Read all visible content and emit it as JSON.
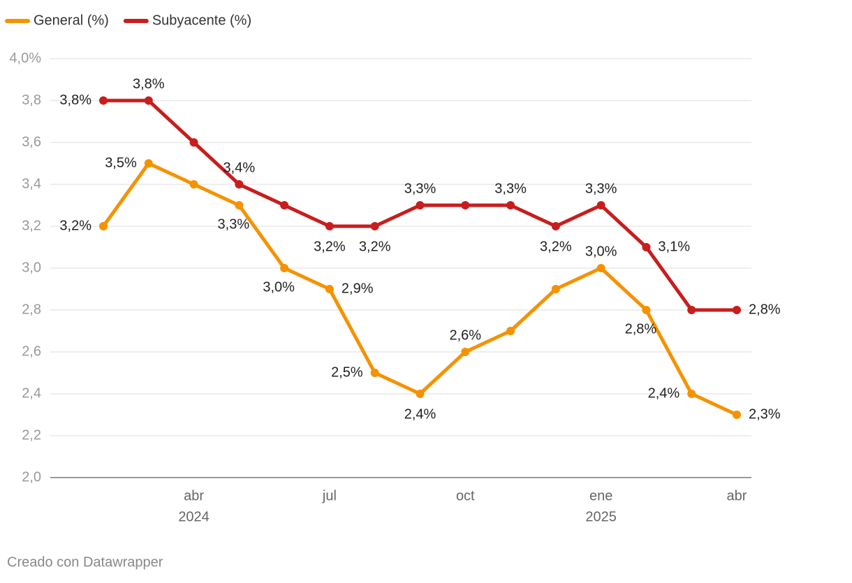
{
  "chart_data": {
    "type": "line",
    "categories": [
      null,
      null,
      "abr",
      null,
      null,
      "jul",
      null,
      null,
      "oct",
      null,
      null,
      "ene",
      null,
      null,
      "abr"
    ],
    "year_labels": [
      null,
      null,
      "2024",
      null,
      null,
      null,
      null,
      null,
      null,
      null,
      null,
      "2025",
      null,
      null,
      null
    ],
    "series": [
      {
        "name": "General (%)",
        "color": "#f59200",
        "values": [
          3.2,
          3.5,
          3.4,
          3.3,
          3.0,
          2.9,
          2.5,
          2.4,
          2.6,
          2.7,
          2.9,
          3.0,
          2.8,
          2.4,
          2.3
        ],
        "value_labels": [
          "3,2%",
          "3,5%",
          null,
          "3,3%",
          "3,0%",
          "2,9%",
          "2,5%",
          "2,4%",
          "2,6%",
          null,
          null,
          "3,0%",
          "2,8%",
          "2,4%",
          "2,3%"
        ]
      },
      {
        "name": "Subyacente (%)",
        "color": "#c71e1d",
        "values": [
          3.8,
          3.8,
          3.6,
          3.4,
          3.3,
          3.2,
          3.2,
          3.3,
          3.3,
          3.3,
          3.2,
          3.3,
          3.1,
          2.8,
          2.8
        ],
        "value_labels": [
          "3,8%",
          "3,8%",
          null,
          "3,4%",
          null,
          "3,2%",
          "3,2%",
          "3,3%",
          null,
          "3,3%",
          "3,2%",
          "3,3%",
          "3,1%",
          null,
          "2,8%"
        ]
      }
    ],
    "ylim": [
      2.0,
      4.0
    ],
    "yticks": [
      {
        "value": 2.0,
        "label": "2,0"
      },
      {
        "value": 2.2,
        "label": "2,2"
      },
      {
        "value": 2.4,
        "label": "2,4"
      },
      {
        "value": 2.6,
        "label": "2,6"
      },
      {
        "value": 2.8,
        "label": "2,8"
      },
      {
        "value": 3.0,
        "label": "3,0"
      },
      {
        "value": 3.2,
        "label": "3,2"
      },
      {
        "value": 3.4,
        "label": "3,4"
      },
      {
        "value": 3.6,
        "label": "3,6"
      },
      {
        "value": 3.8,
        "label": "3,8"
      },
      {
        "value": 4.0,
        "label": "4,0%"
      }
    ],
    "grid": true,
    "footer": "Creado con Datawrapper"
  }
}
